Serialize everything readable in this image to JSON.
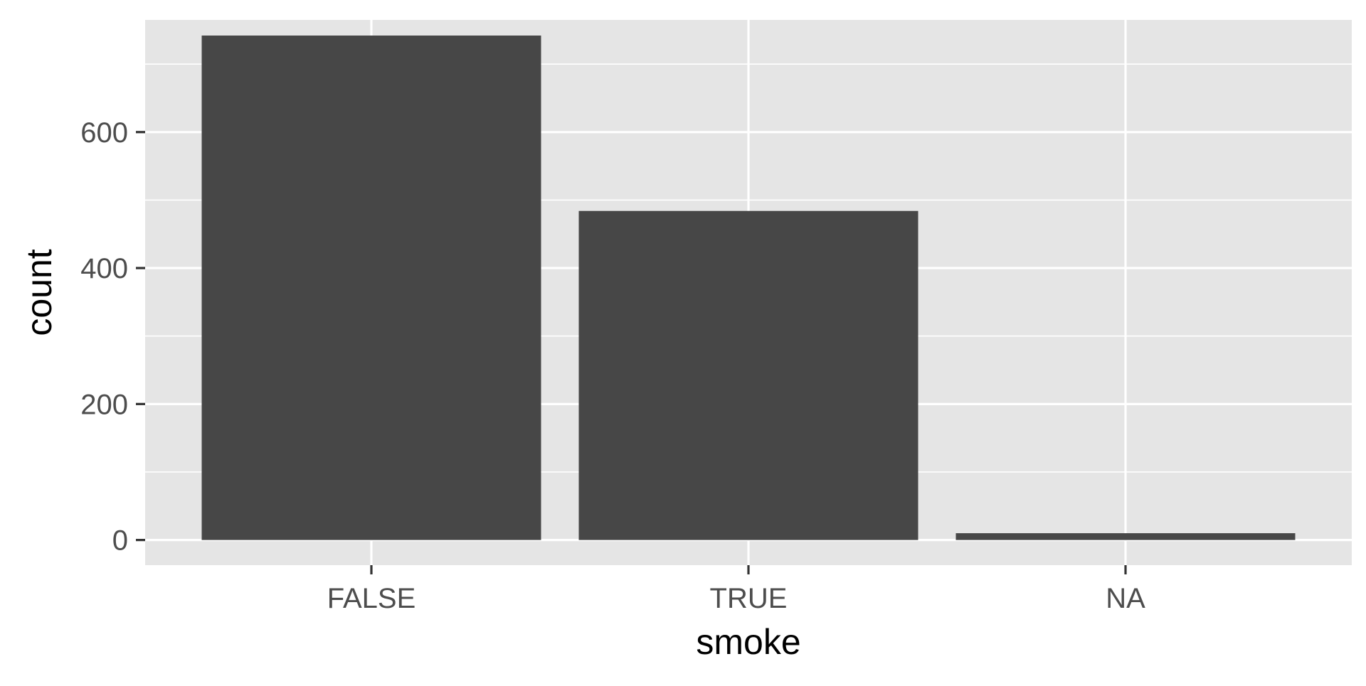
{
  "chart_data": {
    "type": "bar",
    "categories": [
      "FALSE",
      "TRUE",
      "NA"
    ],
    "values": [
      742,
      484,
      10
    ],
    "xlabel": "smoke",
    "ylabel": "count",
    "ylim": [
      -37,
      765
    ],
    "yticks": [
      0,
      200,
      400,
      600
    ],
    "grid": true,
    "legend": "none"
  },
  "colors": {
    "panel_background": "#e5e5e5",
    "grid_major": "#ffffff",
    "grid_minor": "#f2f2f2",
    "bar_fill": "#474747",
    "tick_label": "#4d4d4d",
    "axis_title": "#000000",
    "tick_mark": "#333333"
  }
}
